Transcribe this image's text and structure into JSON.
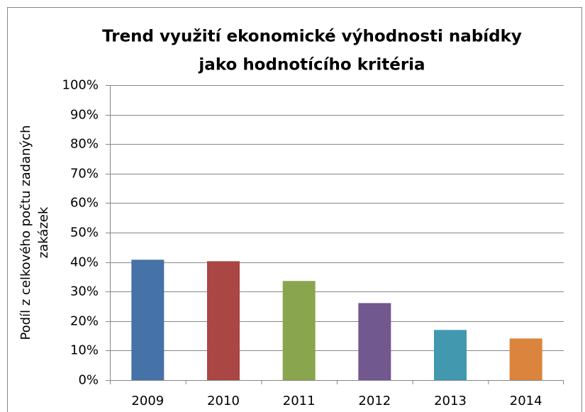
{
  "chart_data": {
    "type": "bar",
    "title": [
      "Trend využití ekonomické výhodnosti nabídky",
      "jako hodnotícího kritéria"
    ],
    "ylabel": [
      "Podíl z celkového počtu zadaných",
      "zakázek"
    ],
    "categories": [
      "2009",
      "2010",
      "2011",
      "2012",
      "2013",
      "2014"
    ],
    "series": [
      {
        "values": [
          40.8,
          40.3,
          33.6,
          26.1,
          17,
          14.1
        ],
        "colors": [
          "#4572a7",
          "#aa4643",
          "#89a54e",
          "#71588f",
          "#4198af",
          "#db843d"
        ]
      }
    ],
    "ylim": [
      0,
      100
    ],
    "yticks": [
      {
        "value": 0,
        "label": "0%"
      },
      {
        "value": 10,
        "label": "10%"
      },
      {
        "value": 20,
        "label": "20%"
      },
      {
        "value": 30,
        "label": "30%"
      },
      {
        "value": 40,
        "label": "40%"
      },
      {
        "value": 50,
        "label": "50%"
      },
      {
        "value": 60,
        "label": "60%"
      },
      {
        "value": 70,
        "label": "70%"
      },
      {
        "value": 80,
        "label": "80%"
      },
      {
        "value": 90,
        "label": "90%"
      },
      {
        "value": 100,
        "label": "100%"
      }
    ],
    "grid": true
  }
}
